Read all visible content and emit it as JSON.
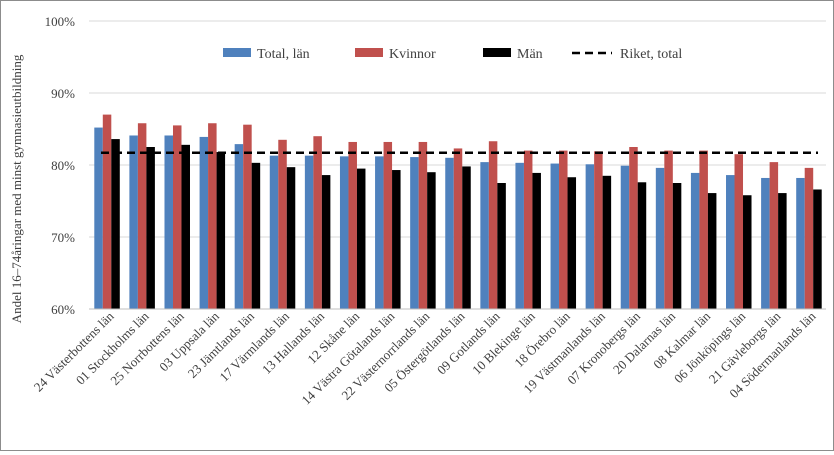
{
  "chart_data": {
    "type": "bar",
    "ylabel": "Andel 16–74åringar med minst gymnasieutbildning",
    "ylim": [
      60,
      100
    ],
    "yticks": [
      "60%",
      "70%",
      "80%",
      "90%",
      "100%"
    ],
    "ytick_values": [
      60,
      70,
      80,
      90,
      100
    ],
    "grid": true,
    "legend_position": "top",
    "categories": [
      "24 Västerbottens län",
      "01 Stockholms län",
      "25 Norrbottens län",
      "03 Uppsala län",
      "23 Jämtlands län",
      "17 Värmlands län",
      "13 Hallands län",
      "12 Skåne län",
      "14 Västra Götalands län",
      "22 Västernorrlands län",
      "05 Östergötlands län",
      "09 Gotlands län",
      "10 Blekinge län",
      "18 Örebro län",
      "19 Västmanlands län",
      "07 Kronobergs län",
      "20 Dalarnas län",
      "08 Kalmar län",
      "06 Jönköpings län",
      "21 Gävleborgs län",
      "04 Södermanlands län"
    ],
    "series": [
      {
        "name": "Total, län",
        "color": "#4f81bd",
        "values": [
          85.2,
          84.1,
          84.1,
          83.9,
          82.9,
          81.3,
          81.3,
          81.2,
          81.2,
          81.1,
          81.0,
          80.4,
          80.3,
          80.2,
          80.1,
          79.9,
          79.6,
          78.9,
          78.6,
          78.2,
          78.2
        ]
      },
      {
        "name": "Kvinnor",
        "color": "#c0504d",
        "values": [
          87.0,
          85.8,
          85.5,
          85.8,
          85.6,
          83.5,
          84.0,
          83.2,
          83.2,
          83.2,
          82.3,
          83.3,
          82.0,
          82.0,
          81.9,
          82.5,
          82.0,
          82.0,
          81.5,
          80.4,
          79.6
        ]
      },
      {
        "name": "Män",
        "color": "#000000",
        "values": [
          83.6,
          82.5,
          82.8,
          81.8,
          80.3,
          79.7,
          78.6,
          79.5,
          79.3,
          79.0,
          79.8,
          77.5,
          78.9,
          78.3,
          78.5,
          77.6,
          77.5,
          76.1,
          75.8,
          76.1,
          76.6
        ]
      }
    ],
    "reference_line": {
      "name": "Riket, total",
      "value": 81.7,
      "style": "dashed",
      "color": "#000000"
    }
  }
}
